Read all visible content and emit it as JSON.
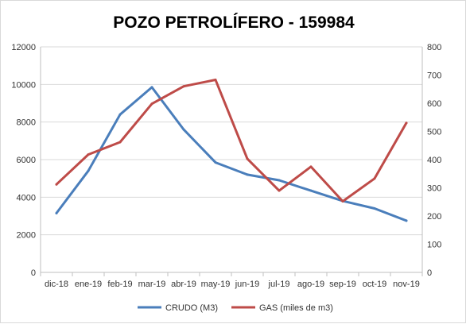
{
  "chart_data": {
    "type": "line",
    "title": "POZO PETROLÍFERO - 159984",
    "categories": [
      "dic-18",
      "ene-19",
      "feb-19",
      "mar-19",
      "abr-19",
      "may-19",
      "jun-19",
      "jul-19",
      "ago-19",
      "sep-19",
      "oct-19",
      "nov-19"
    ],
    "series": [
      {
        "name": "CRUDO (M3)",
        "axis": "left",
        "color": "#4a7ebb",
        "values": [
          3150,
          5400,
          8400,
          9850,
          7600,
          5850,
          5200,
          4900,
          4350,
          3800,
          3400,
          2750
        ]
      },
      {
        "name": "GAS (miles de m3)",
        "axis": "right",
        "color": "#be4b48",
        "values": [
          312,
          418,
          462,
          598,
          660,
          683,
          403,
          290,
          375,
          252,
          333,
          530
        ]
      }
    ],
    "y_left": {
      "min": 0,
      "max": 12000,
      "step": 2000,
      "ticks": [
        "0",
        "2000",
        "4000",
        "6000",
        "8000",
        "10000",
        "12000"
      ]
    },
    "y_right": {
      "min": 0,
      "max": 800,
      "step": 100,
      "ticks": [
        "0",
        "100",
        "200",
        "300",
        "400",
        "500",
        "600",
        "700",
        "800"
      ]
    },
    "grid": true,
    "legend_position": "bottom"
  }
}
